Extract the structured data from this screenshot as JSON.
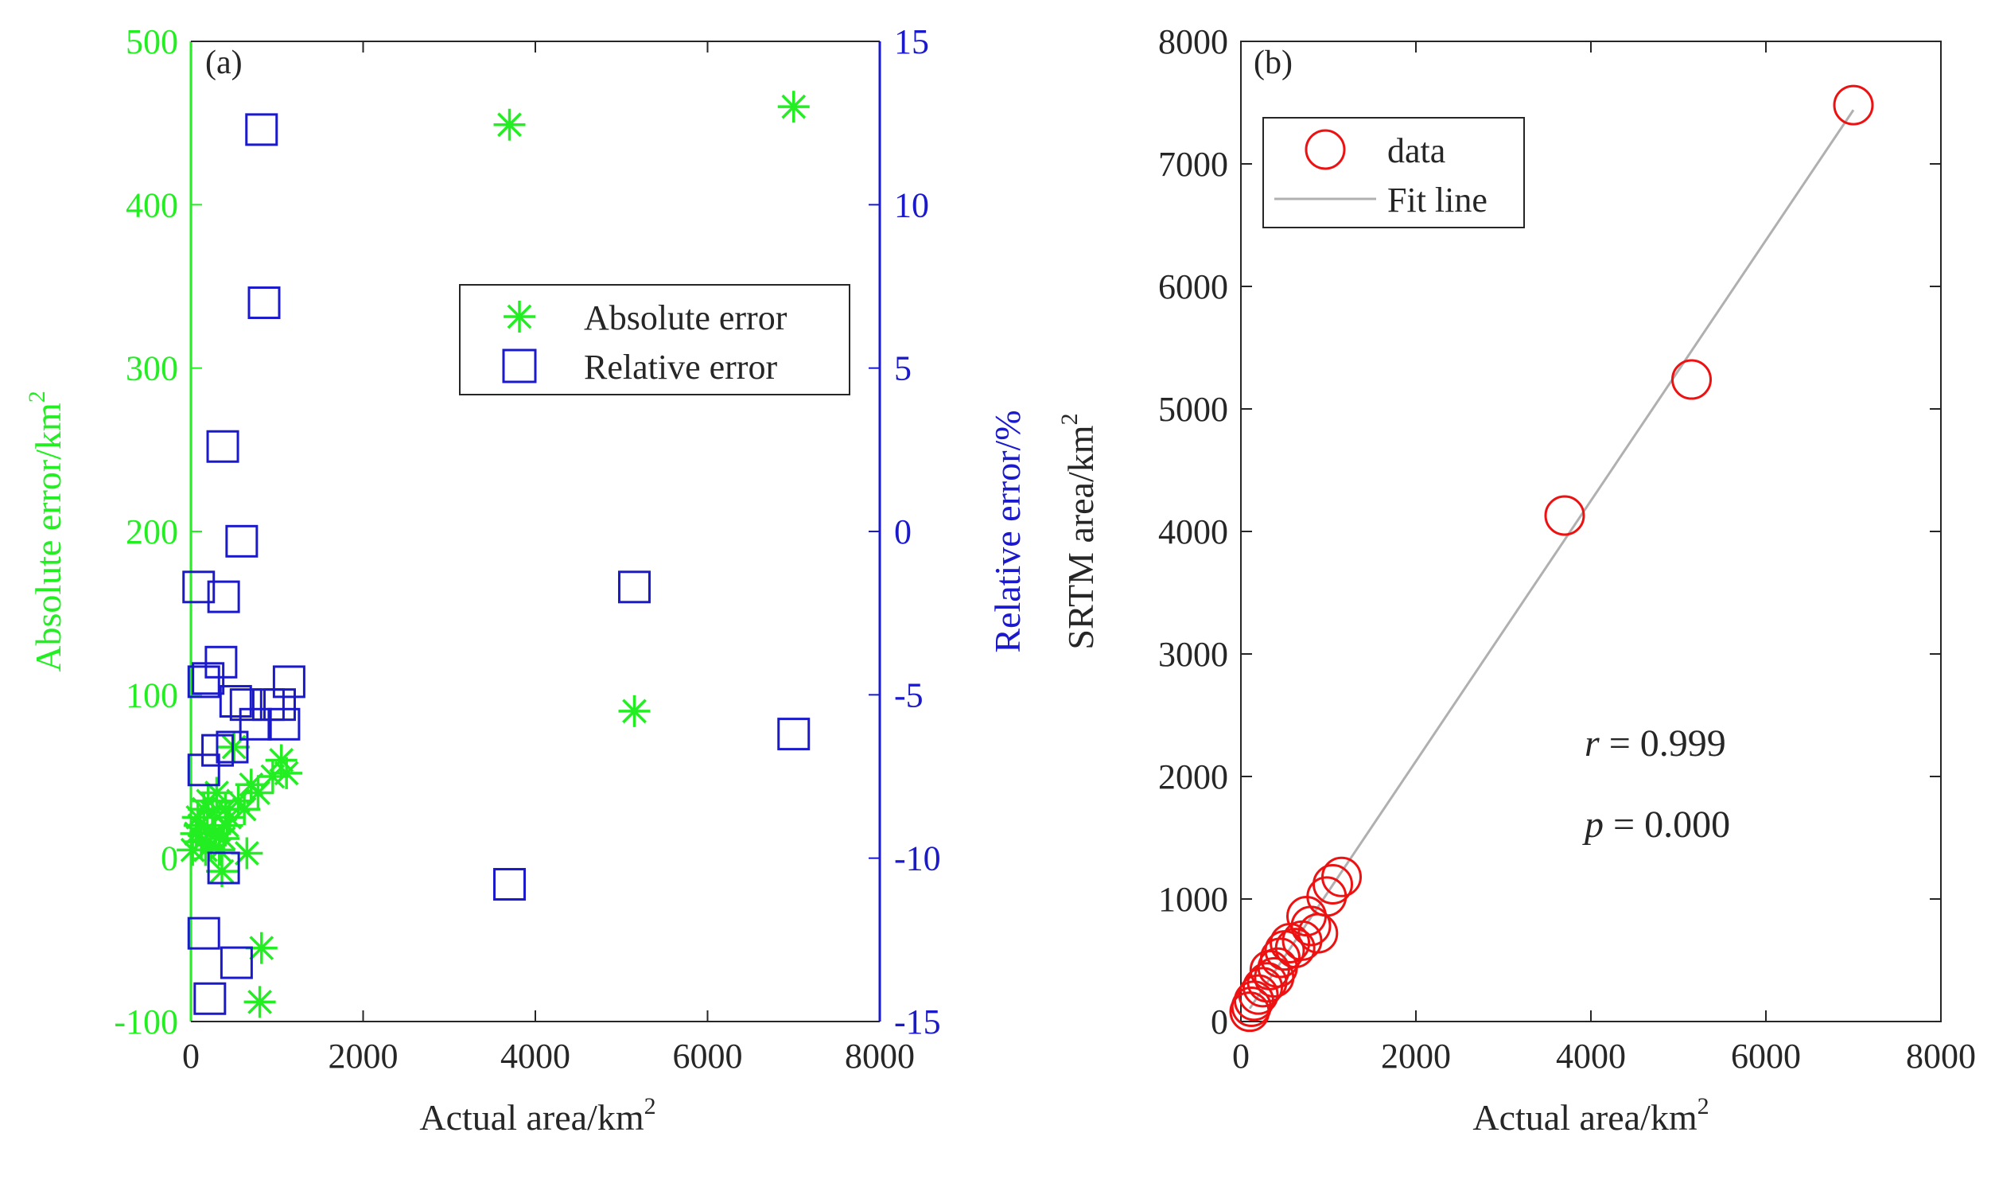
{
  "figure": {
    "colors": {
      "green": "#22ee22",
      "blue": "#1a1acc",
      "red": "#ee1111",
      "black": "#262626",
      "gray": "#b0b0b0"
    }
  },
  "chart_data": [
    {
      "panel": "(a)",
      "type": "scatter",
      "xlabel": "Actual area/km",
      "xlabel_sup": "2",
      "ylabel_left": "Absolute error/km",
      "ylabel_left_sup": "2",
      "ylabel_right": "Relative error/%",
      "xlim": [
        0,
        8000
      ],
      "ylim_left": [
        -100,
        500
      ],
      "ylim_right": [
        -15,
        15
      ],
      "x_ticks": [
        "0",
        "2000",
        "4000",
        "6000",
        "8000"
      ],
      "y_left_ticks": [
        "-100",
        "0",
        "100",
        "200",
        "300",
        "400",
        "500"
      ],
      "y_right_ticks": [
        "-15",
        "-10",
        "-5",
        "0",
        "5",
        "10",
        "15"
      ],
      "legend": {
        "position": "top-right",
        "entries": [
          "Absolute error",
          "Relative error"
        ]
      },
      "series": [
        {
          "name": "Absolute error",
          "axis": "left",
          "marker": "asterisk",
          "points": [
            [
              20,
              5
            ],
            [
              60,
              15
            ],
            [
              80,
              25
            ],
            [
              100,
              20
            ],
            [
              120,
              10
            ],
            [
              150,
              30
            ],
            [
              170,
              5
            ],
            [
              190,
              18
            ],
            [
              200,
              35
            ],
            [
              230,
              8
            ],
            [
              250,
              28
            ],
            [
              280,
              15
            ],
            [
              300,
              40
            ],
            [
              330,
              5
            ],
            [
              360,
              -8
            ],
            [
              380,
              12
            ],
            [
              400,
              30
            ],
            [
              420,
              20
            ],
            [
              450,
              25
            ],
            [
              500,
              68
            ],
            [
              550,
              35
            ],
            [
              620,
              30
            ],
            [
              650,
              3
            ],
            [
              700,
              45
            ],
            [
              780,
              40
            ],
            [
              820,
              -55
            ],
            [
              800,
              -88
            ],
            [
              950,
              50
            ],
            [
              1050,
              60
            ],
            [
              1110,
              52
            ],
            [
              3700,
              449
            ],
            [
              5150,
              90
            ],
            [
              7000,
              460
            ]
          ]
        },
        {
          "name": "Relative error",
          "axis": "right",
          "marker": "square",
          "points": [
            [
              820,
              12.3
            ],
            [
              850,
              7
            ],
            [
              370,
              2.6
            ],
            [
              590,
              -0.3
            ],
            [
              90,
              -1.7
            ],
            [
              380,
              -2
            ],
            [
              5150,
              -1.7
            ],
            [
              350,
              -4
            ],
            [
              150,
              -4.6
            ],
            [
              200,
              -4.5
            ],
            [
              1140,
              -4.6
            ],
            [
              520,
              -5.2
            ],
            [
              640,
              -5.3
            ],
            [
              900,
              -5.3
            ],
            [
              1030,
              -5.3
            ],
            [
              750,
              -5.9
            ],
            [
              1080,
              -5.9
            ],
            [
              7000,
              -6.2
            ],
            [
              480,
              -6.6
            ],
            [
              310,
              -6.7
            ],
            [
              150,
              -7.3
            ],
            [
              380,
              -10.3
            ],
            [
              3700,
              -10.8
            ],
            [
              150,
              -12.3
            ],
            [
              530,
              -13.2
            ],
            [
              220,
              -14.3
            ]
          ]
        }
      ]
    },
    {
      "panel": "(b)",
      "type": "scatter",
      "xlabel": "Actual area/km",
      "xlabel_sup": "2",
      "ylabel": "SRTM area/km",
      "ylabel_sup": "2",
      "xlim": [
        0,
        8000
      ],
      "ylim": [
        0,
        8000
      ],
      "x_ticks": [
        "0",
        "2000",
        "4000",
        "6000",
        "8000"
      ],
      "y_ticks": [
        "0",
        "1000",
        "2000",
        "3000",
        "4000",
        "5000",
        "6000",
        "7000",
        "8000"
      ],
      "legend": {
        "position": "top-left",
        "entries": [
          "data",
          "Fit line"
        ]
      },
      "annotations": [
        {
          "var": "r",
          "text": " = 0.999"
        },
        {
          "var": "p",
          "text": " = 0.000"
        }
      ],
      "fit_line": {
        "x": [
          100,
          7000
        ],
        "y": [
          105,
          7440
        ]
      },
      "series": [
        {
          "name": "data",
          "marker": "circle",
          "points": [
            [
              7000,
              7480
            ],
            [
              5150,
              5240
            ],
            [
              3700,
              4130
            ],
            [
              1150,
              1180
            ],
            [
              1050,
              1120
            ],
            [
              980,
              1020
            ],
            [
              880,
              720
            ],
            [
              800,
              780
            ],
            [
              750,
              860
            ],
            [
              700,
              660
            ],
            [
              620,
              600
            ],
            [
              560,
              640
            ],
            [
              500,
              580
            ],
            [
              450,
              520
            ],
            [
              420,
              440
            ],
            [
              380,
              360
            ],
            [
              330,
              420
            ],
            [
              300,
              320
            ],
            [
              250,
              280
            ],
            [
              200,
              220
            ],
            [
              150,
              170
            ],
            [
              120,
              120
            ],
            [
              100,
              80
            ]
          ]
        }
      ]
    }
  ]
}
